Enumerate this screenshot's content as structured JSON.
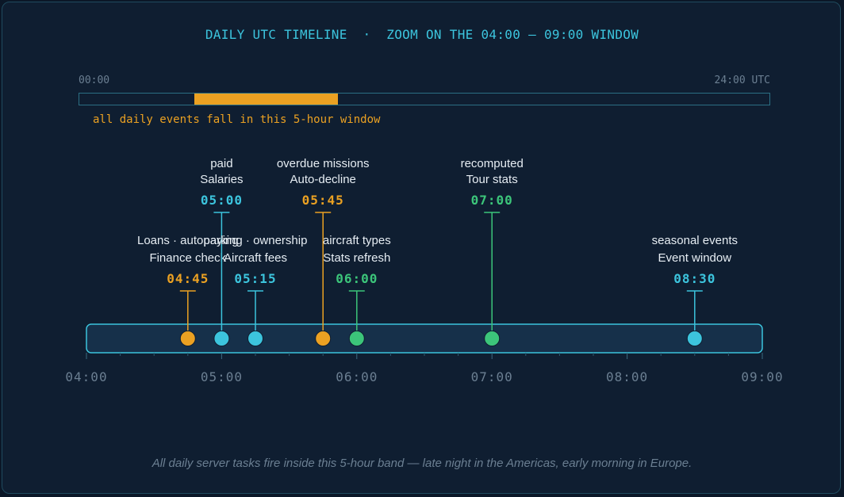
{
  "title": "DAILY UTC TIMELINE  ·  ZOOM ON THE 04:00 – 09:00 WINDOW",
  "overview": {
    "start_label": "00:00",
    "end_label": "24:00 UTC",
    "window_start_hour": 4,
    "window_end_hour": 9,
    "note": "all daily events fall in this 5-hour window",
    "fill_color": "#eba122"
  },
  "axis": {
    "start_hour": 4,
    "end_hour": 9,
    "tick_labels": [
      "04:00",
      "05:00",
      "06:00",
      "07:00",
      "08:00",
      "09:00"
    ]
  },
  "colors": {
    "orange": "#eba122",
    "cyan": "#3cc4dd",
    "green": "#3cc57a"
  },
  "events": [
    {
      "time_label": "04:45",
      "hour": 4.75,
      "line1": "Loans · autopaying",
      "line2": "Finance check",
      "color": "orange",
      "tier": "low"
    },
    {
      "time_label": "05:00",
      "hour": 5.0,
      "line1": "paid",
      "line2": "Salaries",
      "color": "cyan",
      "tier": "high"
    },
    {
      "time_label": "05:15",
      "hour": 5.25,
      "line1": "parking · ownership",
      "line2": "Aircraft fees",
      "color": "cyan",
      "tier": "low"
    },
    {
      "time_label": "05:45",
      "hour": 5.75,
      "line1": "overdue missions",
      "line2": "Auto-decline",
      "color": "orange",
      "tier": "high"
    },
    {
      "time_label": "06:00",
      "hour": 6.0,
      "line1": "aircraft types",
      "line2": "Stats refresh",
      "color": "green",
      "tier": "low"
    },
    {
      "time_label": "07:00",
      "hour": 7.0,
      "line1": "recomputed",
      "line2": "Tour stats",
      "color": "green",
      "tier": "high"
    },
    {
      "time_label": "08:30",
      "hour": 8.5,
      "line1": "seasonal events",
      "line2": "Event window",
      "color": "cyan",
      "tier": "low"
    }
  ],
  "footer": "All daily server tasks fire inside this 5-hour band — late night in the Americas, early morning in Europe."
}
